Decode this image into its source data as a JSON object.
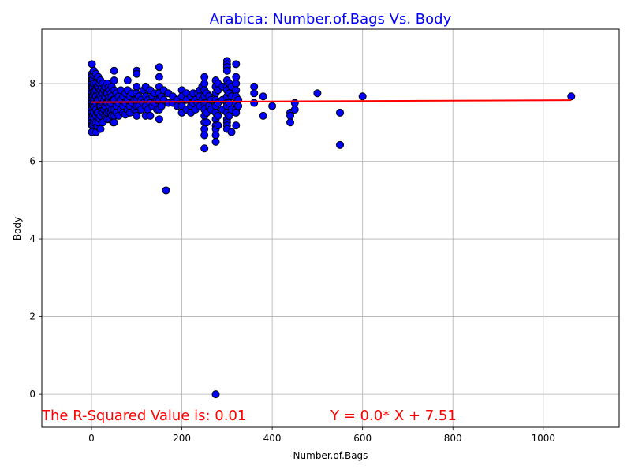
{
  "chart_data": {
    "type": "scatter",
    "title": "Arabica: Number.of.Bags Vs. Body",
    "xlabel": "Number.of.Bags",
    "ylabel": "Body",
    "xlim": [
      -110,
      1168
    ],
    "ylim": [
      -0.85,
      9.4
    ],
    "xticks": [
      0,
      200,
      400,
      600,
      800,
      1000
    ],
    "yticks": [
      0,
      2,
      4,
      6,
      8
    ],
    "grid": true,
    "colors": {
      "title": "#0000ff",
      "points": "#0000ff",
      "point_edge": "#000000",
      "line": "#ff0000",
      "annotation": "#ff0000",
      "grid": "#b0b0b0"
    },
    "points": [
      [
        1,
        8.5
      ],
      [
        1,
        8.25
      ],
      [
        1,
        8.17
      ],
      [
        1,
        8.08
      ],
      [
        1,
        8.0
      ],
      [
        1,
        7.92
      ],
      [
        1,
        7.83
      ],
      [
        1,
        7.75
      ],
      [
        1,
        7.67
      ],
      [
        1,
        7.58
      ],
      [
        1,
        7.5
      ],
      [
        1,
        7.42
      ],
      [
        1,
        7.33
      ],
      [
        1,
        7.25
      ],
      [
        1,
        7.17
      ],
      [
        1,
        7.08
      ],
      [
        1,
        7.0
      ],
      [
        1,
        6.92
      ],
      [
        1,
        6.75
      ],
      [
        3,
        8.1
      ],
      [
        3,
        7.9
      ],
      [
        3,
        7.7
      ],
      [
        3,
        7.45
      ],
      [
        3,
        7.2
      ],
      [
        3,
        6.95
      ],
      [
        5,
        8.33
      ],
      [
        5,
        8.0
      ],
      [
        5,
        7.75
      ],
      [
        5,
        7.5
      ],
      [
        5,
        7.25
      ],
      [
        5,
        7.0
      ],
      [
        7,
        8.2
      ],
      [
        7,
        7.8
      ],
      [
        7,
        7.6
      ],
      [
        7,
        7.4
      ],
      [
        7,
        7.1
      ],
      [
        10,
        8.25
      ],
      [
        10,
        8.0
      ],
      [
        10,
        7.83
      ],
      [
        10,
        7.67
      ],
      [
        10,
        7.5
      ],
      [
        10,
        7.33
      ],
      [
        10,
        7.17
      ],
      [
        10,
        7.0
      ],
      [
        10,
        6.75
      ],
      [
        13,
        8.15
      ],
      [
        13,
        7.92
      ],
      [
        13,
        7.58
      ],
      [
        13,
        7.25
      ],
      [
        13,
        6.9
      ],
      [
        15,
        8.17
      ],
      [
        15,
        7.92
      ],
      [
        15,
        7.58
      ],
      [
        15,
        7.25
      ],
      [
        15,
        7.0
      ],
      [
        18,
        8.0
      ],
      [
        18,
        7.75
      ],
      [
        18,
        7.42
      ],
      [
        18,
        7.1
      ],
      [
        20,
        8.08
      ],
      [
        20,
        7.83
      ],
      [
        20,
        7.67
      ],
      [
        20,
        7.42
      ],
      [
        20,
        7.17
      ],
      [
        20,
        6.83
      ],
      [
        23,
        7.9
      ],
      [
        23,
        7.6
      ],
      [
        23,
        7.3
      ],
      [
        25,
        8.0
      ],
      [
        25,
        7.75
      ],
      [
        25,
        7.5
      ],
      [
        25,
        7.25
      ],
      [
        25,
        7.0
      ],
      [
        28,
        7.83
      ],
      [
        28,
        7.58
      ],
      [
        28,
        7.33
      ],
      [
        30,
        7.92
      ],
      [
        30,
        7.67
      ],
      [
        30,
        7.42
      ],
      [
        30,
        7.17
      ],
      [
        33,
        7.75
      ],
      [
        33,
        7.5
      ],
      [
        33,
        7.2
      ],
      [
        35,
        8.0
      ],
      [
        35,
        7.75
      ],
      [
        35,
        7.5
      ],
      [
        35,
        7.25
      ],
      [
        35,
        7.08
      ],
      [
        38,
        7.9
      ],
      [
        38,
        7.6
      ],
      [
        38,
        7.3
      ],
      [
        40,
        7.83
      ],
      [
        40,
        7.67
      ],
      [
        40,
        7.42
      ],
      [
        40,
        7.08
      ],
      [
        43,
        7.75
      ],
      [
        43,
        7.5
      ],
      [
        43,
        7.25
      ],
      [
        45,
        7.92
      ],
      [
        45,
        7.67
      ],
      [
        45,
        7.33
      ],
      [
        45,
        7.17
      ],
      [
        48,
        7.58
      ],
      [
        48,
        7.0
      ],
      [
        50,
        8.33
      ],
      [
        50,
        8.08
      ],
      [
        50,
        7.83
      ],
      [
        50,
        7.58
      ],
      [
        50,
        7.33
      ],
      [
        50,
        7.17
      ],
      [
        50,
        7.0
      ],
      [
        55,
        7.75
      ],
      [
        55,
        7.42
      ],
      [
        55,
        7.25
      ],
      [
        60,
        7.67
      ],
      [
        60,
        7.5
      ],
      [
        60,
        7.17
      ],
      [
        65,
        7.83
      ],
      [
        65,
        7.58
      ],
      [
        65,
        7.33
      ],
      [
        70,
        7.67
      ],
      [
        70,
        7.42
      ],
      [
        70,
        7.25
      ],
      [
        75,
        7.75
      ],
      [
        75,
        7.5
      ],
      [
        75,
        7.2
      ],
      [
        80,
        8.08
      ],
      [
        80,
        7.83
      ],
      [
        80,
        7.58
      ],
      [
        80,
        7.33
      ],
      [
        85,
        7.67
      ],
      [
        85,
        7.42
      ],
      [
        85,
        7.25
      ],
      [
        90,
        7.75
      ],
      [
        90,
        7.5
      ],
      [
        95,
        7.58
      ],
      [
        95,
        7.33
      ],
      [
        100,
        8.33
      ],
      [
        100,
        8.25
      ],
      [
        100,
        7.92
      ],
      [
        100,
        7.75
      ],
      [
        100,
        7.58
      ],
      [
        100,
        7.42
      ],
      [
        100,
        7.25
      ],
      [
        100,
        7.17
      ],
      [
        105,
        7.67
      ],
      [
        105,
        7.42
      ],
      [
        110,
        7.58
      ],
      [
        110,
        7.33
      ],
      [
        115,
        7.83
      ],
      [
        115,
        7.5
      ],
      [
        120,
        7.92
      ],
      [
        120,
        7.67
      ],
      [
        120,
        7.42
      ],
      [
        120,
        7.17
      ],
      [
        125,
        7.58
      ],
      [
        125,
        7.33
      ],
      [
        130,
        7.83
      ],
      [
        130,
        7.5
      ],
      [
        130,
        7.17
      ],
      [
        135,
        7.67
      ],
      [
        135,
        7.42
      ],
      [
        140,
        7.75
      ],
      [
        140,
        7.5
      ],
      [
        145,
        7.58
      ],
      [
        145,
        7.33
      ],
      [
        150,
        8.42
      ],
      [
        150,
        8.17
      ],
      [
        150,
        7.92
      ],
      [
        150,
        7.75
      ],
      [
        150,
        7.58
      ],
      [
        150,
        7.33
      ],
      [
        150,
        7.08
      ],
      [
        155,
        7.67
      ],
      [
        155,
        7.42
      ],
      [
        160,
        7.83
      ],
      [
        160,
        7.58
      ],
      [
        165,
        5.25
      ],
      [
        170,
        7.75
      ],
      [
        170,
        7.5
      ],
      [
        180,
        7.67
      ],
      [
        180,
        7.5
      ],
      [
        190,
        7.58
      ],
      [
        190,
        7.42
      ],
      [
        200,
        7.83
      ],
      [
        200,
        7.67
      ],
      [
        200,
        7.5
      ],
      [
        200,
        7.42
      ],
      [
        200,
        7.25
      ],
      [
        210,
        7.75
      ],
      [
        210,
        7.58
      ],
      [
        210,
        7.33
      ],
      [
        220,
        7.67
      ],
      [
        220,
        7.42
      ],
      [
        220,
        7.25
      ],
      [
        225,
        7.75
      ],
      [
        225,
        7.5
      ],
      [
        230,
        7.58
      ],
      [
        230,
        7.33
      ],
      [
        235,
        7.75
      ],
      [
        235,
        7.5
      ],
      [
        240,
        7.83
      ],
      [
        240,
        7.67
      ],
      [
        240,
        7.42
      ],
      [
        245,
        7.92
      ],
      [
        245,
        7.58
      ],
      [
        250,
        8.17
      ],
      [
        250,
        8.0
      ],
      [
        250,
        7.83
      ],
      [
        250,
        7.67
      ],
      [
        250,
        7.5
      ],
      [
        250,
        7.33
      ],
      [
        250,
        7.17
      ],
      [
        250,
        7.0
      ],
      [
        250,
        6.83
      ],
      [
        250,
        6.67
      ],
      [
        250,
        6.33
      ],
      [
        255,
        7.75
      ],
      [
        255,
        7.5
      ],
      [
        255,
        7.25
      ],
      [
        255,
        7.0
      ],
      [
        260,
        7.67
      ],
      [
        260,
        7.42
      ],
      [
        265,
        7.58
      ],
      [
        265,
        7.33
      ],
      [
        275,
        8.08
      ],
      [
        275,
        7.92
      ],
      [
        275,
        7.75
      ],
      [
        275,
        7.58
      ],
      [
        275,
        7.42
      ],
      [
        275,
        7.25
      ],
      [
        275,
        7.08
      ],
      [
        275,
        6.92
      ],
      [
        275,
        6.83
      ],
      [
        275,
        6.67
      ],
      [
        275,
        6.5
      ],
      [
        275,
        0.0
      ],
      [
        280,
        8.0
      ],
      [
        280,
        7.83
      ],
      [
        280,
        7.5
      ],
      [
        280,
        7.17
      ],
      [
        280,
        6.92
      ],
      [
        290,
        7.92
      ],
      [
        290,
        7.58
      ],
      [
        290,
        7.33
      ],
      [
        300,
        8.58
      ],
      [
        300,
        8.5
      ],
      [
        300,
        8.42
      ],
      [
        300,
        8.33
      ],
      [
        300,
        8.08
      ],
      [
        300,
        7.92
      ],
      [
        300,
        7.83
      ],
      [
        300,
        7.67
      ],
      [
        300,
        7.5
      ],
      [
        300,
        7.42
      ],
      [
        300,
        7.25
      ],
      [
        300,
        7.08
      ],
      [
        300,
        7.0
      ],
      [
        300,
        6.92
      ],
      [
        300,
        6.83
      ],
      [
        305,
        8.0
      ],
      [
        305,
        7.75
      ],
      [
        305,
        7.5
      ],
      [
        305,
        7.17
      ],
      [
        310,
        7.92
      ],
      [
        310,
        7.67
      ],
      [
        310,
        7.33
      ],
      [
        310,
        6.75
      ],
      [
        320,
        8.5
      ],
      [
        320,
        8.17
      ],
      [
        320,
        8.0
      ],
      [
        320,
        7.83
      ],
      [
        320,
        7.67
      ],
      [
        320,
        7.5
      ],
      [
        320,
        7.33
      ],
      [
        320,
        7.25
      ],
      [
        320,
        6.92
      ],
      [
        325,
        7.58
      ],
      [
        325,
        7.42
      ],
      [
        360,
        7.92
      ],
      [
        360,
        7.75
      ],
      [
        360,
        7.5
      ],
      [
        380,
        7.67
      ],
      [
        380,
        7.17
      ],
      [
        400,
        7.42
      ],
      [
        440,
        7.25
      ],
      [
        440,
        7.17
      ],
      [
        440,
        7.0
      ],
      [
        450,
        7.5
      ],
      [
        450,
        7.33
      ],
      [
        500,
        7.75
      ],
      [
        550,
        7.25
      ],
      [
        550,
        6.42
      ],
      [
        600,
        7.67
      ],
      [
        1062,
        7.67
      ]
    ],
    "regression": {
      "slope": 0.0,
      "intercept": 7.51,
      "x_start": 0,
      "x_end": 1062,
      "y_start": 7.52,
      "y_end": 7.57
    },
    "annotations": {
      "r_squared_text": "The R-Squared Value is: 0.01",
      "equation_text": "Y = 0.0* X + 7.51"
    }
  }
}
